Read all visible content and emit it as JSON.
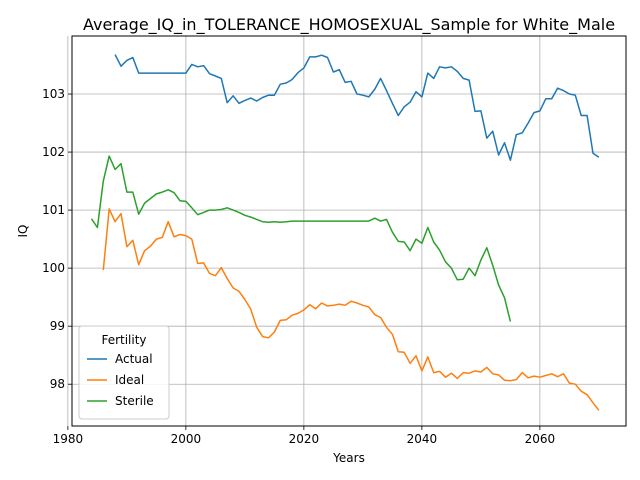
{
  "chart_data": {
    "type": "line",
    "title": "Average_IQ_in_TOLERANCE_HOMOSEXUAL_Sample for White_Male",
    "xlabel": "Years",
    "ylabel": "IQ",
    "xlim": [
      1980.7,
      2074.6
    ],
    "ylim": [
      97.28,
      104.0
    ],
    "xticks": [
      1980,
      2000,
      2020,
      2040,
      2060
    ],
    "yticks": [
      98,
      99,
      100,
      101,
      102,
      103
    ],
    "grid": true,
    "legend": {
      "title": "Fertility",
      "position": "lower-left"
    },
    "series": [
      {
        "name": "Actual",
        "color": "#1f77b4",
        "x": [
          1988,
          1989,
          1990,
          1991,
          1992,
          1993,
          1994,
          1995,
          1996,
          1997,
          1998,
          1999,
          2000,
          2001,
          2002,
          2003,
          2004,
          2005,
          2006,
          2007,
          2008,
          2009,
          2010,
          2011,
          2012,
          2013,
          2014,
          2015,
          2016,
          2017,
          2018,
          2019,
          2020,
          2021,
          2022,
          2023,
          2024,
          2025,
          2026,
          2027,
          2028,
          2029,
          2030,
          2031,
          2032,
          2033,
          2034,
          2035,
          2036,
          2037,
          2038,
          2039,
          2040,
          2041,
          2042,
          2043,
          2044,
          2045,
          2046,
          2047,
          2048,
          2049,
          2050,
          2051,
          2052,
          2053,
          2054,
          2055,
          2056,
          2057,
          2058,
          2059,
          2060,
          2061,
          2062,
          2063,
          2064,
          2065,
          2066,
          2067,
          2068,
          2069,
          2070
        ],
        "y": [
          103.68,
          103.48,
          103.58,
          103.63,
          103.36,
          103.36,
          103.36,
          103.36,
          103.36,
          103.36,
          103.36,
          103.36,
          103.36,
          103.51,
          103.47,
          103.49,
          103.35,
          103.31,
          103.27,
          102.85,
          102.97,
          102.84,
          102.89,
          102.93,
          102.88,
          102.94,
          102.98,
          102.98,
          103.17,
          103.19,
          103.25,
          103.37,
          103.45,
          103.64,
          103.64,
          103.67,
          103.63,
          103.38,
          103.42,
          103.2,
          103.22,
          103.0,
          102.98,
          102.95,
          103.08,
          103.27,
          103.06,
          102.84,
          102.63,
          102.78,
          102.86,
          103.04,
          102.95,
          103.36,
          103.27,
          103.47,
          103.45,
          103.47,
          103.39,
          103.27,
          103.24,
          102.7,
          102.71,
          102.24,
          102.36,
          101.95,
          102.16,
          101.86,
          102.3,
          102.33,
          102.5,
          102.68,
          102.71,
          102.92,
          102.92,
          103.1,
          103.06,
          103.0,
          102.98,
          102.63,
          102.63,
          101.98,
          101.91
        ]
      },
      {
        "name": "Ideal",
        "color": "#ff7f0e",
        "x": [
          1986,
          1987,
          1988,
          1989,
          1990,
          1991,
          1992,
          1993,
          1994,
          1995,
          1996,
          1997,
          1998,
          1999,
          2000,
          2001,
          2002,
          2003,
          2004,
          2005,
          2006,
          2007,
          2008,
          2009,
          2010,
          2011,
          2012,
          2013,
          2014,
          2015,
          2016,
          2017,
          2018,
          2019,
          2020,
          2021,
          2022,
          2023,
          2024,
          2025,
          2026,
          2027,
          2028,
          2029,
          2030,
          2031,
          2032,
          2033,
          2034,
          2035,
          2036,
          2037,
          2038,
          2039,
          2040,
          2041,
          2042,
          2043,
          2044,
          2045,
          2046,
          2047,
          2048,
          2049,
          2050,
          2051,
          2052,
          2053,
          2054,
          2055,
          2056,
          2057,
          2058,
          2059,
          2060,
          2061,
          2062,
          2063,
          2064,
          2065,
          2066,
          2067,
          2068,
          2069,
          2070
        ],
        "y": [
          99.97,
          101.02,
          100.8,
          100.94,
          100.37,
          100.48,
          100.06,
          100.3,
          100.38,
          100.5,
          100.53,
          100.8,
          100.54,
          100.58,
          100.56,
          100.5,
          100.08,
          100.09,
          99.91,
          99.87,
          100.01,
          99.82,
          99.66,
          99.6,
          99.46,
          99.29,
          98.98,
          98.82,
          98.8,
          98.9,
          99.1,
          99.11,
          99.19,
          99.22,
          99.28,
          99.37,
          99.3,
          99.4,
          99.35,
          99.36,
          99.38,
          99.36,
          99.43,
          99.4,
          99.36,
          99.33,
          99.2,
          99.15,
          98.98,
          98.86,
          98.56,
          98.55,
          98.36,
          98.49,
          98.23,
          98.47,
          98.2,
          98.22,
          98.12,
          98.19,
          98.1,
          98.2,
          98.19,
          98.23,
          98.21,
          98.29,
          98.18,
          98.16,
          98.07,
          98.06,
          98.08,
          98.2,
          98.11,
          98.14,
          98.12,
          98.15,
          98.18,
          98.13,
          98.18,
          98.02,
          98.0,
          97.88,
          97.82,
          97.68,
          97.55
        ]
      },
      {
        "name": "Sterile",
        "color": "#2ca02c",
        "x": [
          1984,
          1985,
          1986,
          1987,
          1988,
          1989,
          1990,
          1991,
          1992,
          1993,
          1994,
          1995,
          1996,
          1997,
          1998,
          1999,
          2000,
          2001,
          2002,
          2003,
          2004,
          2005,
          2006,
          2007,
          2008,
          2009,
          2010,
          2011,
          2012,
          2013,
          2014,
          2015,
          2016,
          2017,
          2018,
          2019,
          2020,
          2021,
          2022,
          2023,
          2024,
          2025,
          2026,
          2027,
          2028,
          2029,
          2030,
          2031,
          2032,
          2033,
          2034,
          2035,
          2036,
          2037,
          2038,
          2039,
          2040,
          2041,
          2042,
          2043,
          2044,
          2045,
          2046,
          2047,
          2048,
          2049,
          2050,
          2051,
          2052,
          2053,
          2054,
          2055
        ],
        "y": [
          100.85,
          100.7,
          101.5,
          101.93,
          101.7,
          101.8,
          101.31,
          101.31,
          100.93,
          101.12,
          101.2,
          101.28,
          101.31,
          101.35,
          101.3,
          101.16,
          101.15,
          101.04,
          100.92,
          100.96,
          101.0,
          101.0,
          101.01,
          101.04,
          101.0,
          100.96,
          100.91,
          100.88,
          100.84,
          100.8,
          100.79,
          100.8,
          100.79,
          100.8,
          100.81,
          100.81,
          100.81,
          100.81,
          100.81,
          100.81,
          100.81,
          100.81,
          100.81,
          100.81,
          100.81,
          100.81,
          100.81,
          100.81,
          100.86,
          100.81,
          100.84,
          100.62,
          100.46,
          100.45,
          100.3,
          100.5,
          100.43,
          100.7,
          100.45,
          100.31,
          100.11,
          100.0,
          99.8,
          99.81,
          100.0,
          99.87,
          100.14,
          100.35,
          100.05,
          99.71,
          99.49,
          99.08
        ]
      }
    ]
  }
}
